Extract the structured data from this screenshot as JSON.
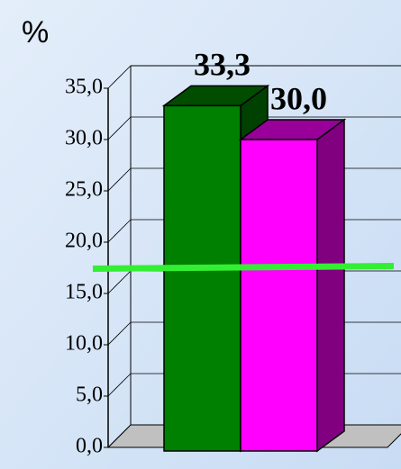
{
  "chart_data": {
    "type": "bar3d",
    "y_label": "%",
    "categories": [
      null,
      null
    ],
    "series": [
      {
        "name": null,
        "color": "#008000",
        "values": [
          33.3,
          null
        ],
        "value_labels": [
          "33,3",
          null
        ]
      },
      {
        "name": null,
        "color": "#ff00ff",
        "values": [
          null,
          30.0
        ],
        "value_labels": [
          null,
          "30,0"
        ]
      }
    ],
    "ylim": [
      0,
      35
    ],
    "yticks": [
      {
        "value": 0,
        "label": "0,0"
      },
      {
        "value": 5,
        "label": "5,0"
      },
      {
        "value": 10,
        "label": "10,0"
      },
      {
        "value": 15,
        "label": "15,0"
      },
      {
        "value": 20,
        "label": "20,0"
      },
      {
        "value": 25,
        "label": "25,0"
      },
      {
        "value": 30,
        "label": "30,0"
      },
      {
        "value": 35,
        "label": "35,0"
      }
    ],
    "grid": true,
    "reference_lines": [
      {
        "value": 17.5,
        "color": "#33ee33"
      }
    ]
  }
}
